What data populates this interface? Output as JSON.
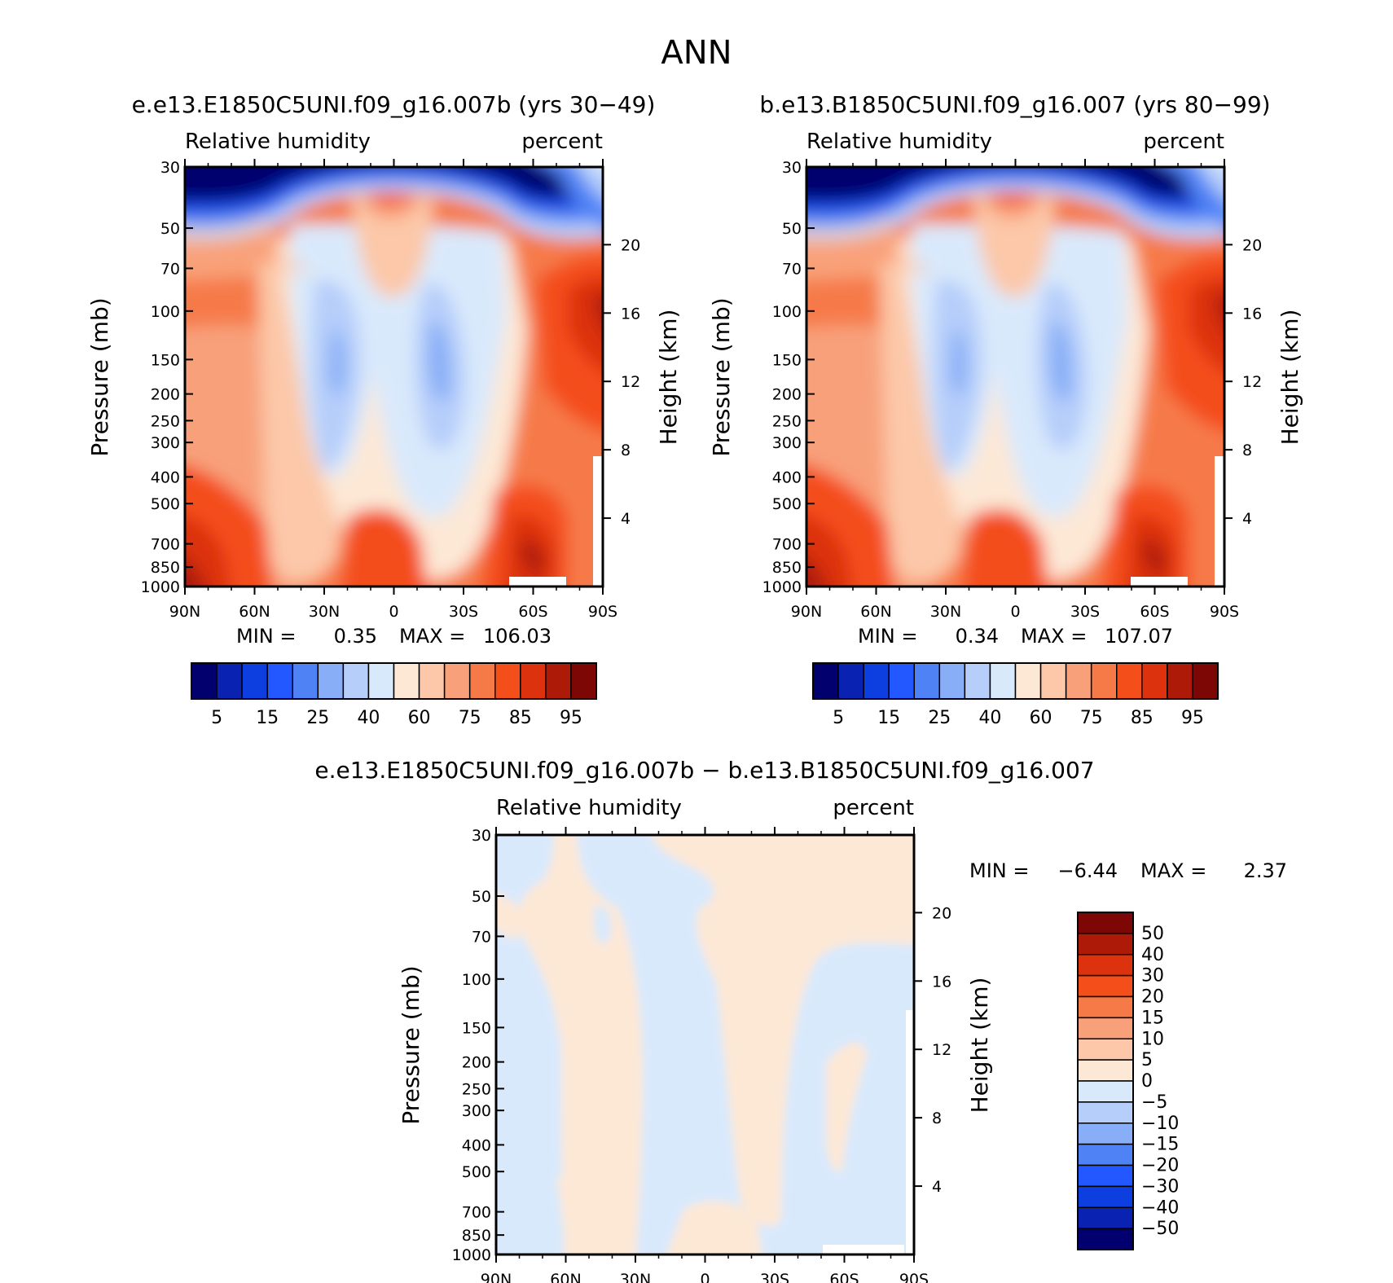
{
  "title": "ANN",
  "panels": [
    {
      "id": "case1",
      "title": "e.e13.E1850C5UNI.f09_g16.007b (yrs 30−49)",
      "left_string": "Relative humidity",
      "right_string": "percent",
      "stats": {
        "min_label": "MIN =",
        "min": "0.35",
        "max_label": "MAX =",
        "max": "106.03"
      }
    },
    {
      "id": "case2",
      "title": "b.e13.B1850C5UNI.f09_g16.007 (yrs 80−99)",
      "left_string": "Relative humidity",
      "right_string": "percent",
      "stats": {
        "min_label": "MIN =",
        "min": "0.34",
        "max_label": "MAX =",
        "max": "107.07"
      }
    },
    {
      "id": "diff",
      "title": "e.e13.E1850C5UNI.f09_g16.007b − b.e13.B1850C5UNI.f09_g16.007",
      "left_string": "Relative humidity",
      "right_string": "percent",
      "stats": {
        "min_label": "MIN =",
        "min": "−6.44",
        "max_label": "MAX =",
        "max": "2.37"
      }
    }
  ],
  "axes": {
    "ylabel": "Pressure (mb)",
    "y2label": "Height (km)",
    "pressure_ticks": [
      "30",
      "50",
      "70",
      "100",
      "150",
      "200",
      "250",
      "300",
      "400",
      "500",
      "700",
      "850",
      "1000"
    ],
    "height_ticks": [
      "20",
      "16",
      "12",
      "8",
      "4"
    ],
    "lat_ticks": [
      "90N",
      "60N",
      "30N",
      "0",
      "30S",
      "60S",
      "90S"
    ]
  },
  "colorbar_abs": {
    "labels": [
      "5",
      "15",
      "25",
      "40",
      "60",
      "75",
      "85",
      "95"
    ],
    "colors": [
      "#02006e",
      "#0a22b2",
      "#0c3ee0",
      "#2357ff",
      "#4f83f5",
      "#87aef7",
      "#b6cefa",
      "#d9e9fc",
      "#fde8d6",
      "#fcc8a9",
      "#f8a07a",
      "#f67a48",
      "#f44e1a",
      "#dc330e",
      "#ad1b08",
      "#7d0705"
    ]
  },
  "colorbar_diff": {
    "labels": [
      "50",
      "40",
      "30",
      "20",
      "15",
      "10",
      "5",
      "0",
      "−5",
      "−10",
      "−15",
      "−20",
      "−30",
      "−40",
      "−50"
    ],
    "colors": [
      "#7d0705",
      "#ad1b08",
      "#dc330e",
      "#f44e1a",
      "#f67a48",
      "#f8a07a",
      "#fcc8a9",
      "#fde8d6",
      "#d9e9fc",
      "#b6cefa",
      "#87aef7",
      "#4f83f5",
      "#2357ff",
      "#0c3ee0",
      "#0a22b2",
      "#02006e"
    ]
  },
  "chart_data": [
    {
      "type": "heatmap",
      "title": "e.e13.E1850C5UNI.f09_g16.007b (yrs 30−49)",
      "xlabel": "",
      "ylabel": "Pressure (mb)",
      "y2label": "Height (km)",
      "xlim": [
        90,
        -90
      ],
      "ylim": [
        1000,
        30
      ],
      "y_scale": "log",
      "min": 0.35,
      "max": 106.03,
      "note_levels": [
        5,
        15,
        25,
        40,
        60,
        75,
        85,
        95
      ]
    },
    {
      "type": "heatmap",
      "title": "b.e13.B1850C5UNI.f09_g16.007 (yrs 80−99)",
      "xlabel": "",
      "ylabel": "Pressure (mb)",
      "y2label": "Height (km)",
      "xlim": [
        90,
        -90
      ],
      "ylim": [
        1000,
        30
      ],
      "y_scale": "log",
      "min": 0.34,
      "max": 107.07
    },
    {
      "type": "heatmap",
      "title": "e.e13.E1850C5UNI.f09_g16.007b − b.e13.B1850C5UNI.f09_g16.007",
      "xlabel": "",
      "ylabel": "Pressure (mb)",
      "y2label": "Height (km)",
      "xlim": [
        90,
        -90
      ],
      "ylim": [
        1000,
        30
      ],
      "y_scale": "log",
      "min": -6.44,
      "max": 2.37
    }
  ]
}
